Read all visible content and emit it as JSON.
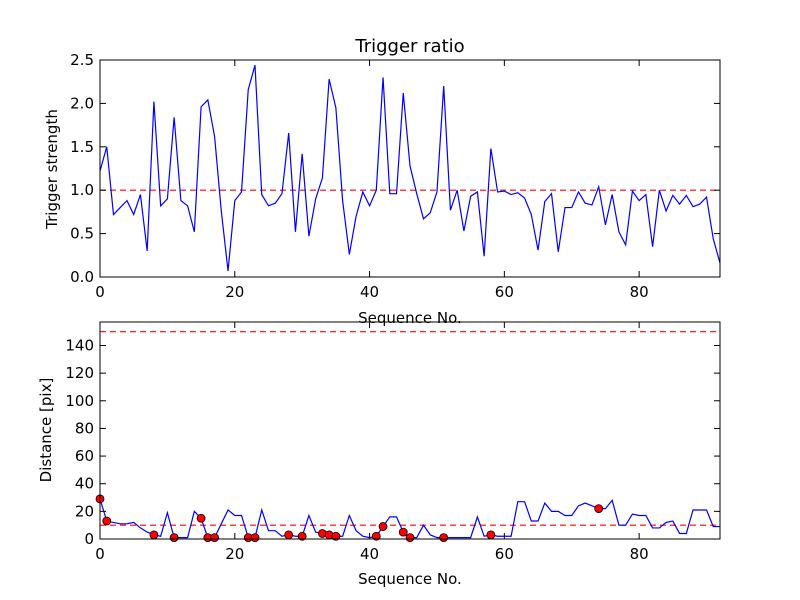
{
  "chart_data": [
    {
      "type": "line",
      "title": "Trigger ratio",
      "xlabel": "Sequence No.",
      "ylabel": "Trigger strength",
      "xlim": [
        0,
        92
      ],
      "ylim": [
        0,
        2.5
      ],
      "xticks": [
        0,
        20,
        40,
        60,
        80
      ],
      "xtick_labels": [
        "0",
        "20",
        "40",
        "60",
        "80"
      ],
      "yticks": [
        0,
        0.5,
        1,
        1.5,
        2,
        2.5
      ],
      "ytick_labels": [
        "0.0",
        "0.5",
        "1.0",
        "1.5",
        "2.0",
        "2.5"
      ],
      "grid": false,
      "reference_lines": [
        {
          "y": 1.0,
          "color": "#ff0000",
          "style": "dashed"
        }
      ],
      "series": [
        {
          "color": "#0000ff",
          "x": [
            0,
            1,
            2,
            3,
            4,
            5,
            6,
            7,
            8,
            9,
            10,
            11,
            12,
            13,
            14,
            15,
            16,
            17,
            18,
            19,
            20,
            21,
            22,
            23,
            24,
            25,
            26,
            27,
            28,
            29,
            30,
            31,
            32,
            33,
            34,
            35,
            36,
            37,
            38,
            39,
            40,
            41,
            42,
            43,
            44,
            45,
            46,
            47,
            48,
            49,
            50,
            51,
            52,
            53,
            54,
            55,
            56,
            57,
            58,
            59,
            60,
            61,
            62,
            63,
            64,
            65,
            66,
            67,
            68,
            69,
            70,
            71,
            72,
            73,
            74,
            75,
            76,
            77,
            78,
            79,
            80,
            81,
            82,
            83,
            84,
            85,
            86,
            87,
            88,
            89,
            90,
            91,
            92
          ],
          "y": [
            1.22,
            1.5,
            0.72,
            0.8,
            0.88,
            0.72,
            0.95,
            0.3,
            2.02,
            0.82,
            0.9,
            1.84,
            0.88,
            0.82,
            0.52,
            1.96,
            2.04,
            1.62,
            0.76,
            0.07,
            0.88,
            0.98,
            2.16,
            2.44,
            0.95,
            0.82,
            0.85,
            0.96,
            1.66,
            0.52,
            1.42,
            0.47,
            0.9,
            1.14,
            2.28,
            1.95,
            0.88,
            0.26,
            0.7,
            0.98,
            0.82,
            1.0,
            2.3,
            0.96,
            0.96,
            2.12,
            1.28,
            0.96,
            0.67,
            0.74,
            0.98,
            2.2,
            0.77,
            1.0,
            0.53,
            0.93,
            0.98,
            0.24,
            1.48,
            0.98,
            0.99,
            0.95,
            0.97,
            0.91,
            0.72,
            0.31,
            0.87,
            0.96,
            0.29,
            0.8,
            0.8,
            0.98,
            0.85,
            0.83,
            1.04,
            0.6,
            0.95,
            0.52,
            0.37,
            0.99,
            0.88,
            0.95,
            0.35,
            1.0,
            0.76,
            0.94,
            0.84,
            0.94,
            0.81,
            0.84,
            0.92,
            0.44,
            0.16
          ]
        }
      ]
    },
    {
      "type": "line",
      "title": "",
      "xlabel": "Sequence No.",
      "ylabel": "Distance [pix]",
      "xlim": [
        0,
        92
      ],
      "ylim": [
        0,
        157
      ],
      "xticks": [
        0,
        20,
        40,
        60,
        80
      ],
      "xtick_labels": [
        "0",
        "20",
        "40",
        "60",
        "80"
      ],
      "yticks": [
        0,
        20,
        40,
        60,
        80,
        100,
        120,
        140
      ],
      "ytick_labels": [
        "0",
        "20",
        "40",
        "60",
        "80",
        "100",
        "120",
        "140"
      ],
      "grid": false,
      "reference_lines": [
        {
          "y": 10,
          "color": "#ff0000",
          "style": "dashed"
        },
        {
          "y": 150,
          "color": "#ff0000",
          "style": "dashed"
        }
      ],
      "series": [
        {
          "color": "#0000ff",
          "x": [
            0,
            1,
            2,
            3,
            4,
            5,
            6,
            7,
            8,
            9,
            10,
            11,
            12,
            13,
            14,
            15,
            16,
            17,
            18,
            19,
            20,
            21,
            22,
            23,
            24,
            25,
            26,
            27,
            28,
            29,
            30,
            31,
            32,
            33,
            34,
            35,
            36,
            37,
            38,
            39,
            40,
            41,
            42,
            43,
            44,
            45,
            46,
            47,
            48,
            49,
            50,
            51,
            52,
            53,
            54,
            55,
            56,
            57,
            58,
            59,
            60,
            61,
            62,
            63,
            64,
            65,
            66,
            67,
            68,
            69,
            70,
            71,
            72,
            73,
            74,
            75,
            76,
            77,
            78,
            79,
            80,
            81,
            82,
            83,
            84,
            85,
            86,
            87,
            88,
            89,
            90,
            91,
            92
          ],
          "y": [
            29,
            13,
            12,
            11,
            11,
            12,
            8,
            5,
            3,
            2,
            19,
            1,
            1,
            1,
            20,
            15,
            1,
            1,
            11,
            21,
            17,
            17,
            1,
            1,
            21,
            6,
            6,
            2,
            3,
            2,
            2,
            17,
            5,
            4,
            3,
            2,
            2,
            17,
            6,
            2,
            1,
            2,
            9,
            16,
            16,
            5,
            1,
            1,
            10,
            3,
            1,
            1,
            1,
            1,
            1,
            1,
            16,
            2,
            3,
            2,
            2,
            2,
            27,
            27,
            13,
            13,
            26,
            20,
            20,
            17,
            17,
            24,
            26,
            24,
            22,
            22,
            28,
            10,
            10,
            18,
            17,
            17,
            8,
            8,
            12,
            13,
            4,
            4,
            21,
            21,
            21,
            9,
            9
          ]
        },
        {
          "type": "scatter",
          "color": "#ff0000",
          "x": [
            0,
            1,
            8,
            11,
            15,
            16,
            17,
            22,
            23,
            28,
            30,
            33,
            34,
            35,
            41,
            42,
            45,
            46,
            51,
            58,
            74
          ],
          "y": [
            29,
            13,
            3,
            1,
            15,
            1,
            1,
            1,
            1,
            3,
            2,
            4,
            3,
            2,
            2,
            9,
            5,
            1,
            1,
            3,
            22
          ]
        }
      ]
    }
  ]
}
